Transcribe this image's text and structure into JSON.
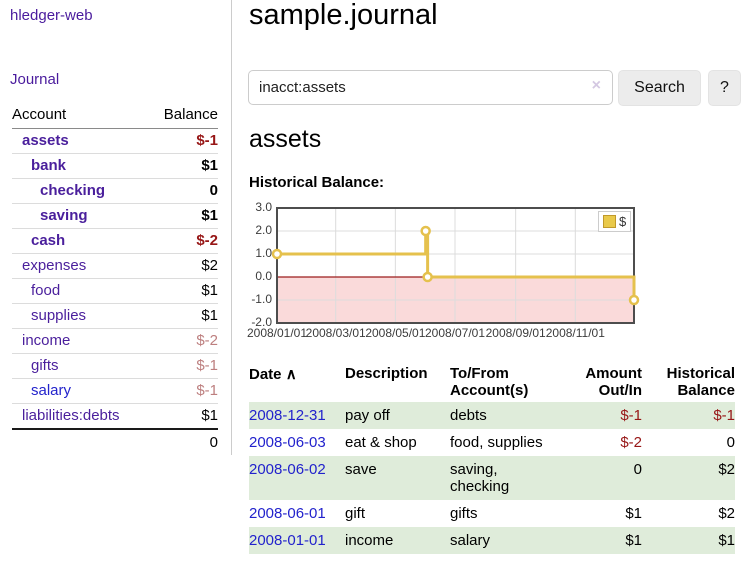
{
  "colors": {
    "accent_purple": "#4a1b9d",
    "link_blue": "#2424cc",
    "negative_red": "#971616",
    "muted_negative": "#bd7f7f",
    "row_stripe_green": "#dfecda",
    "chart_line_gold": "#e5c14d",
    "chart_negative_fill": "#fadada",
    "chart_zero_line": "#9c1c1c"
  },
  "sidebar": {
    "brand": "hledger-web",
    "nav_journal": "Journal",
    "accounts_table": {
      "header_account": "Account",
      "header_balance": "Balance",
      "rows": [
        {
          "name": "assets",
          "level": 0,
          "balance": "$-1",
          "emphasized": true,
          "negative": true
        },
        {
          "name": "bank",
          "level": 1,
          "balance": "$1",
          "emphasized": true
        },
        {
          "name": "checking",
          "level": 2,
          "balance": "0",
          "emphasized": true
        },
        {
          "name": "saving",
          "level": 2,
          "balance": "$1",
          "emphasized": true
        },
        {
          "name": "cash",
          "level": 1,
          "balance": "$-2",
          "emphasized": true,
          "negative": true
        },
        {
          "name": "expenses",
          "level": 0,
          "balance": "$2"
        },
        {
          "name": "food",
          "level": 1,
          "balance": "$1"
        },
        {
          "name": "supplies",
          "level": 1,
          "balance": "$1"
        },
        {
          "name": "income",
          "level": 0,
          "balance": "$-2",
          "muted_negative": true
        },
        {
          "name": "gifts",
          "level": 1,
          "balance": "$-1",
          "muted_negative": true
        },
        {
          "name": "salary",
          "level": 1,
          "balance": "$-1",
          "muted_negative": true,
          "link_color": "blue"
        },
        {
          "name": "liabilities:debts",
          "level": 0,
          "balance": "$1"
        }
      ],
      "total": "0"
    }
  },
  "main": {
    "title": "sample.journal",
    "search": {
      "value": "inacct:assets",
      "clear_icon_symbol": "×",
      "search_button_label": "Search",
      "help_button_label": "?"
    },
    "account_heading": "assets",
    "section_label": "Historical Balance:"
  },
  "chart_data": {
    "type": "line",
    "step": true,
    "title": "Historical Balance",
    "series": [
      {
        "name": "$",
        "points": [
          {
            "x": "2008-01-01",
            "y": 1
          },
          {
            "x": "2008-06-01",
            "y": 2
          },
          {
            "x": "2008-06-03",
            "y": 0
          },
          {
            "x": "2008-12-31",
            "y": -1
          }
        ]
      }
    ],
    "x_range": [
      "2008-01-01",
      "2008-12-31"
    ],
    "ylim": [
      -2,
      3
    ],
    "y_ticks": [
      "3.0",
      "2.0",
      "1.0",
      "0.0",
      "-1.0",
      "-2.0"
    ],
    "x_ticks": [
      "2008/01/01",
      "2008/03/01",
      "2008/05/01",
      "2008/07/01",
      "2008/09/01",
      "2008/11/01"
    ],
    "legend": {
      "label": "$",
      "position": "top-right"
    },
    "grid": true,
    "negative_region_shaded": true
  },
  "register": {
    "headers": {
      "date": "Date",
      "sort_arrow": "∧",
      "description": "Description",
      "accounts": "To/From Account(s)",
      "amount": "Amount Out/In",
      "balance": "Historical Balance"
    },
    "rows": [
      {
        "date": "2008-12-31",
        "description": "pay off",
        "accounts": "debts",
        "amount": "$-1",
        "balance": "$-1"
      },
      {
        "date": "2008-06-03",
        "description": "eat & shop",
        "accounts": "food, supplies",
        "amount": "$-2",
        "balance": "0"
      },
      {
        "date": "2008-06-02",
        "description": "save",
        "accounts": "saving, checking",
        "amount": "0",
        "balance": "$2"
      },
      {
        "date": "2008-06-01",
        "description": "gift",
        "accounts": "gifts",
        "amount": "$1",
        "balance": "$2"
      },
      {
        "date": "2008-01-01",
        "description": "income",
        "accounts": "salary",
        "amount": "$1",
        "balance": "$1"
      }
    ]
  }
}
